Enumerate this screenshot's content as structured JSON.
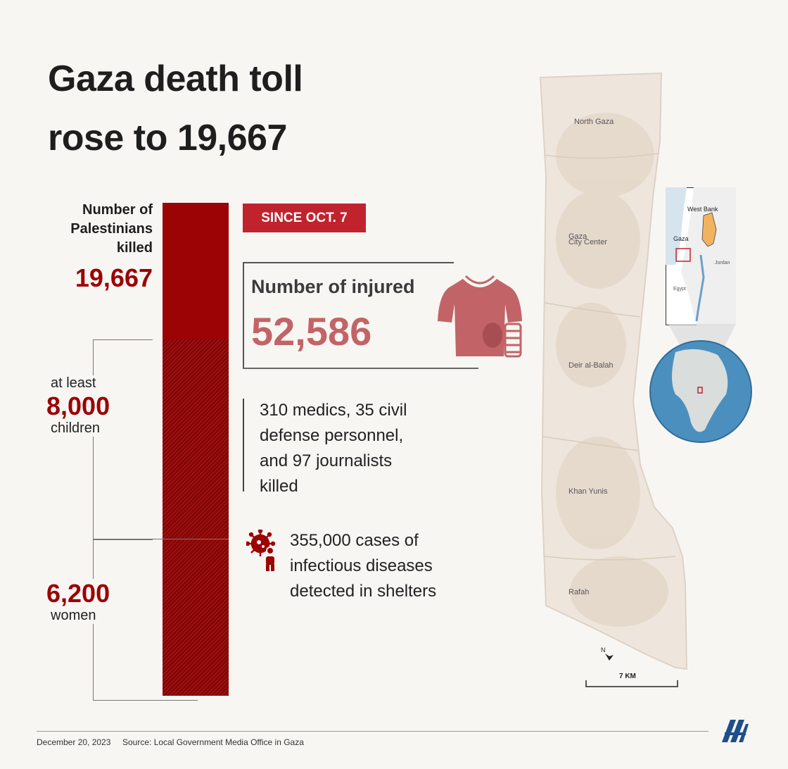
{
  "title": {
    "line1": "Gaza death toll",
    "line2": "rose to 19,667"
  },
  "killed": {
    "label_line1": "Number of",
    "label_line2": "Palestinians",
    "label_line3": "killed",
    "value": "19,667"
  },
  "children": {
    "prefix": "at least",
    "value": "8,000",
    "suffix": "children"
  },
  "women": {
    "value": "6,200",
    "suffix": "women"
  },
  "since_badge": "SINCE OCT. 7",
  "injured": {
    "label": "Number of injured",
    "value": "52,586"
  },
  "medics_text": {
    "line1": "310 medics, 35 civil",
    "line2": "defense personnel,",
    "line3": "and 97 journalists",
    "line4": "killed"
  },
  "disease_text": {
    "line1": "355,000 cases of",
    "line2": "infectious diseases",
    "line3": "detected in shelters"
  },
  "map": {
    "regions": [
      "North Gaza",
      "Gaza",
      "City Center",
      "Deir al-Balah",
      "Khan Yunis",
      "Rafah"
    ],
    "scale_label": "7 KM",
    "inset_labels": {
      "west_bank": "West Bank",
      "gaza": "Gaza",
      "jordan": "Jordan",
      "egypt": "Egypt"
    }
  },
  "footer": {
    "date": "December 20, 2023",
    "source": "Source: Local Government Media Office in Gaza"
  },
  "colors": {
    "dark_red": "#9b0304",
    "badge_red": "#c0232e",
    "injured_pink": "#c26467",
    "inset_orange": "#f2b35e",
    "globe_blue": "#4b8fbf"
  }
}
